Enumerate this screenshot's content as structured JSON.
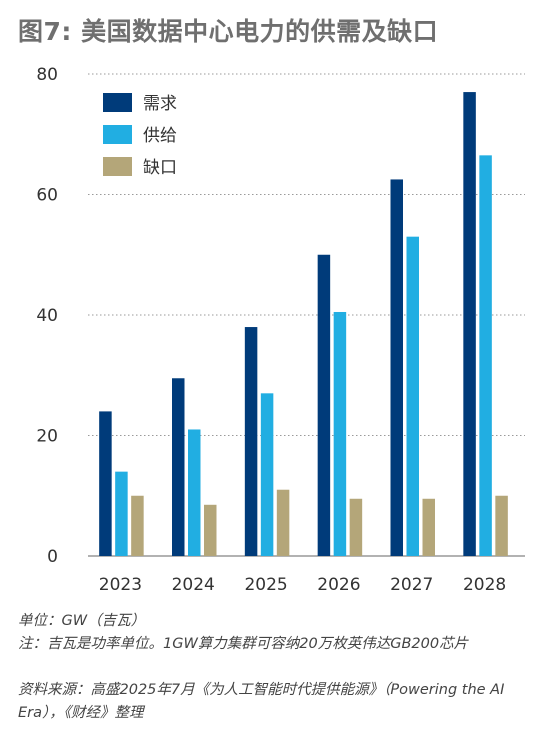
{
  "title": "图7: 美国数据中心电力的供需及缺口",
  "chart_data": {
    "type": "bar",
    "categories": [
      "2023",
      "2024",
      "2025",
      "2026",
      "2027",
      "2028"
    ],
    "series": [
      {
        "name": "需求",
        "color": "#003b7a",
        "values": [
          24,
          29.5,
          38,
          50,
          62.5,
          77
        ]
      },
      {
        "name": "供给",
        "color": "#21aee2",
        "values": [
          14,
          21,
          27,
          40.5,
          53,
          66.5
        ]
      },
      {
        "name": "缺口",
        "color": "#b4a679",
        "values": [
          10,
          8.5,
          11,
          9.5,
          9.5,
          10
        ]
      }
    ],
    "ylim": [
      0,
      80
    ],
    "yticks": [
      0,
      20,
      40,
      60,
      80
    ],
    "grid": "horizontal-dotted",
    "legend": "top-left"
  },
  "notes": {
    "unit": "单位：GW（吉瓦）",
    "comment": "注：吉瓦是功率单位。1GW算力集群可容纳20万枚英伟达GB200芯片",
    "source": "资料来源：高盛2025年7月《为人工智能时代提供能源》（Powering the AI Era），《财经》整理"
  }
}
